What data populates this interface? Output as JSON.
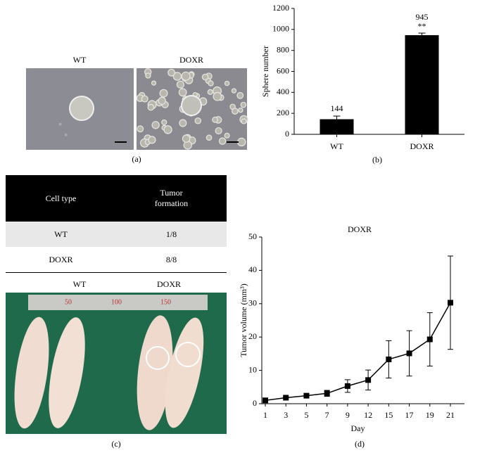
{
  "panel_labels": {
    "a": "(a)",
    "b": "(b)",
    "c": "(c)",
    "d": "(d)"
  },
  "images": {
    "a": [
      "WT",
      "DOXR"
    ],
    "c": [
      "WT",
      "DOXR"
    ],
    "ruler": [
      "50",
      "100",
      "150"
    ]
  },
  "table": {
    "header": [
      "Cell type",
      "Tumor formation"
    ],
    "rows": [
      [
        "WT",
        "1/8"
      ],
      [
        "DOXR",
        "8/8"
      ]
    ]
  },
  "chart_data": [
    {
      "type": "bar",
      "categories": [
        "WT",
        "DOXR"
      ],
      "values": [
        144,
        945
      ],
      "error": [
        30,
        20
      ],
      "annotations": [
        "**"
      ],
      "color": "#000000",
      "ylabel": "Sphere number",
      "ylim": [
        0,
        1200
      ],
      "yticks": [
        0,
        200,
        400,
        600,
        800,
        1000,
        1200
      ]
    },
    {
      "type": "line",
      "title": "DOXR",
      "categories": [
        "1",
        "3",
        "5",
        "7",
        "9",
        "12",
        "15",
        "17",
        "19",
        "21"
      ],
      "values": [
        1.0,
        1.8,
        2.4,
        3.1,
        5.3,
        7.1,
        13.3,
        15.1,
        19.3,
        30.3
      ],
      "error": [
        0.2,
        0.2,
        0.6,
        0.9,
        1.9,
        3.0,
        5.6,
        6.8,
        8.0,
        14.0
      ],
      "color": "#000000",
      "xlabel": "Day",
      "ylabel": "Tumor volume (mm³)",
      "ylim": [
        0,
        50
      ],
      "yticks": [
        0,
        10,
        20,
        30,
        40,
        50
      ]
    }
  ]
}
